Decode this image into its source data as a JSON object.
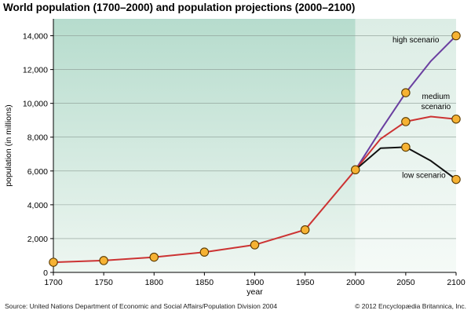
{
  "chart_data": {
    "type": "line",
    "title": "World population (1700–2000) and population projections (2000–2100)",
    "xlabel": "year",
    "ylabel": "population (in millions)",
    "xlim": [
      1700,
      2100
    ],
    "ylim": [
      0,
      15000
    ],
    "x_ticks": [
      "1700",
      "1750",
      "1800",
      "1850",
      "1900",
      "1950",
      "2000",
      "2050",
      "2100"
    ],
    "y_ticks": [
      "0",
      "2,000",
      "4,000",
      "6,000",
      "8,000",
      "10,000",
      "12,000",
      "14,000"
    ],
    "grid": "horizontal",
    "shaded_regions": [
      {
        "from": 1700,
        "to": 2000,
        "kind": "historical",
        "color": "#c8e6dc"
      },
      {
        "from": 2000,
        "to": 2100,
        "kind": "projection",
        "color": "#e6f2ec"
      }
    ],
    "series": [
      {
        "label": "historical",
        "color": "#cc3333",
        "points": [
          [
            1700,
            600
          ],
          [
            1750,
            700
          ],
          [
            1800,
            900
          ],
          [
            1850,
            1200
          ],
          [
            1900,
            1630
          ],
          [
            1950,
            2520
          ],
          [
            2000,
            6070
          ]
        ],
        "markers": [
          1700,
          1750,
          1800,
          1850,
          1900,
          1950,
          2000
        ]
      },
      {
        "label": "high scenario",
        "color": "#6a3fa0",
        "points": [
          [
            2000,
            6070
          ],
          [
            2025,
            8400
          ],
          [
            2050,
            10630
          ],
          [
            2075,
            12500
          ],
          [
            2100,
            14000
          ]
        ],
        "markers": [
          2050,
          2100
        ]
      },
      {
        "label": "medium scenario",
        "color": "#cc3333",
        "points": [
          [
            2000,
            6070
          ],
          [
            2025,
            7900
          ],
          [
            2050,
            8920
          ],
          [
            2075,
            9220
          ],
          [
            2100,
            9070
          ]
        ],
        "markers": [
          2050,
          2100
        ]
      },
      {
        "label": "low scenario",
        "color": "#111111",
        "points": [
          [
            2000,
            6070
          ],
          [
            2025,
            7350
          ],
          [
            2050,
            7410
          ],
          [
            2075,
            6600
          ],
          [
            2100,
            5500
          ]
        ],
        "markers": [
          2050,
          2100
        ]
      }
    ],
    "annotations": [
      {
        "text_lines": [
          "high scenario"
        ],
        "x": 2060,
        "y": 13600,
        "anchor": "middle"
      },
      {
        "text_lines": [
          "medium",
          "scenario"
        ],
        "x": 2080,
        "y": 10270,
        "anchor": "middle"
      },
      {
        "text_lines": [
          "low scenario"
        ],
        "x": 2068,
        "y": 5600,
        "anchor": "middle"
      }
    ],
    "marker_fill": "#f6b233"
  },
  "footer": {
    "source": "Source: United Nations Department of Economic and Social Affairs/Population Division 2004",
    "copyright": "© 2012 Encyclopædia Britannica, Inc."
  }
}
